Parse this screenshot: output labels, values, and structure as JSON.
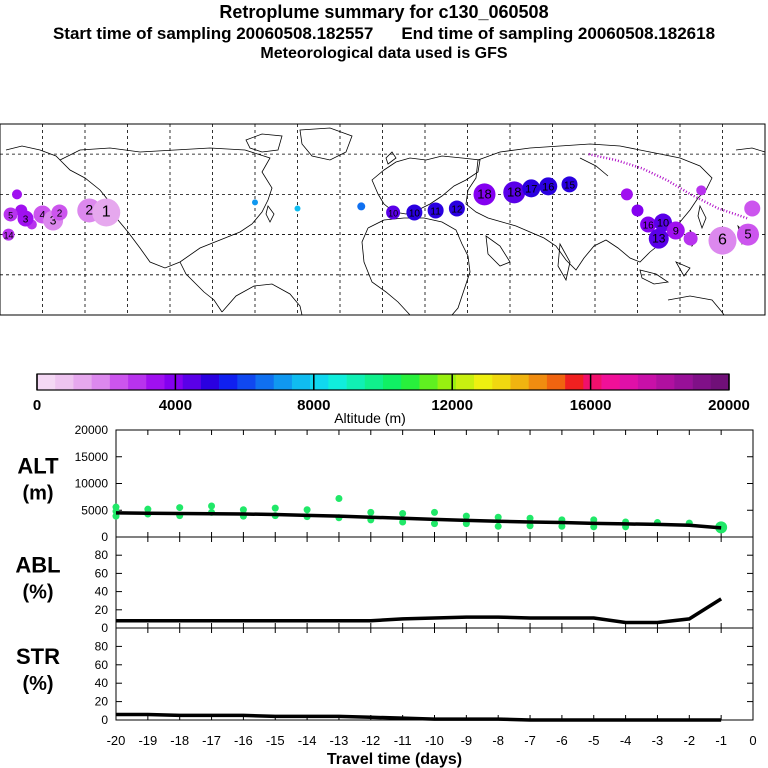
{
  "header": {
    "title": "Retroplume summary for c130_060508",
    "start_label": "Start time of sampling 20060508.182557",
    "end_label": "End time of sampling 20060508.182618",
    "met_label": "Meteorological data used is GFS"
  },
  "colorbar": {
    "label": "Altitude (m)",
    "ticks": [
      "0",
      "4000",
      "8000",
      "12000",
      "16000",
      "20000"
    ],
    "colors": [
      "#f4d8f4",
      "#eec4f0",
      "#e6a8ee",
      "#dc88ee",
      "#cc55ee",
      "#b833ee",
      "#a010f0",
      "#8400f0",
      "#5a00e8",
      "#2a00e0",
      "#1020f0",
      "#1048f0",
      "#1070f0",
      "#1098f0",
      "#10bcf0",
      "#10d8f0",
      "#10eedc",
      "#10f0b4",
      "#10f08c",
      "#10f064",
      "#28f03c",
      "#60f020",
      "#98f010",
      "#c8f010",
      "#eef010",
      "#f0d810",
      "#f0b410",
      "#f08c10",
      "#f06410",
      "#f02020",
      "#f0106c",
      "#f01098",
      "#e010a8",
      "#c810a8",
      "#b010a0",
      "#981098",
      "#801088",
      "#701078"
    ]
  },
  "icons": {
    "map": "world-map-icon"
  },
  "map_plumes": [
    {
      "lon": -170,
      "lat": 32,
      "alt": 3500,
      "size": 6,
      "label": "",
      "region": "pacific"
    },
    {
      "lon": -165,
      "lat": 25,
      "alt": 3000,
      "size": 5,
      "label": "",
      "region": "pacific"
    },
    {
      "lon": -175,
      "lat": 30,
      "alt": 2800,
      "size": 7,
      "label": "5",
      "region": "pacific"
    },
    {
      "lon": -168,
      "lat": 28,
      "alt": 3200,
      "size": 8,
      "label": "3",
      "region": "pacific"
    },
    {
      "lon": -160,
      "lat": 30,
      "alt": 2400,
      "size": 9,
      "label": "4",
      "region": "pacific"
    },
    {
      "lon": -155,
      "lat": 27,
      "alt": 2000,
      "size": 10,
      "label": "3",
      "region": "pacific"
    },
    {
      "lon": -152,
      "lat": 31,
      "alt": 2600,
      "size": 8,
      "label": "2",
      "region": "pacific"
    },
    {
      "lon": -138,
      "lat": 32,
      "alt": 1800,
      "size": 12,
      "label": "2",
      "region": "pacific"
    },
    {
      "lon": -130,
      "lat": 31,
      "alt": 1500,
      "size": 14,
      "label": "1",
      "region": "pacific"
    },
    {
      "lon": -176,
      "lat": 20,
      "alt": 3000,
      "size": 6,
      "label": "14",
      "region": "pacific"
    },
    {
      "lon": -172,
      "lat": 40,
      "alt": 3400,
      "size": 5,
      "label": "",
      "region": "pacific"
    },
    {
      "lon": -60,
      "lat": 36,
      "alt": 7000,
      "size": 3,
      "label": "",
      "region": "atlantic"
    },
    {
      "lon": -40,
      "lat": 33,
      "alt": 7500,
      "size": 3,
      "label": "",
      "region": "atlantic"
    },
    {
      "lon": -10,
      "lat": 34,
      "alt": 6500,
      "size": 4,
      "label": "",
      "region": "atlantic"
    },
    {
      "lon": 5,
      "lat": 31,
      "alt": 4500,
      "size": 7,
      "label": "10",
      "region": "europe"
    },
    {
      "lon": 15,
      "lat": 31,
      "alt": 5000,
      "size": 8,
      "label": "10",
      "region": "europe"
    },
    {
      "lon": 25,
      "lat": 32,
      "alt": 5200,
      "size": 8,
      "label": "11",
      "region": "europe"
    },
    {
      "lon": 35,
      "lat": 33,
      "alt": 5000,
      "size": 8,
      "label": "12",
      "region": "europe"
    },
    {
      "lon": 48,
      "lat": 40,
      "alt": 4200,
      "size": 11,
      "label": "18",
      "region": "asia"
    },
    {
      "lon": 62,
      "lat": 41,
      "alt": 4500,
      "size": 11,
      "label": "18",
      "region": "asia"
    },
    {
      "lon": 70,
      "lat": 43,
      "alt": 4800,
      "size": 9,
      "label": "17",
      "region": "asia"
    },
    {
      "lon": 78,
      "lat": 44,
      "alt": 5000,
      "size": 9,
      "label": "16",
      "region": "asia"
    },
    {
      "lon": 88,
      "lat": 45,
      "alt": 5200,
      "size": 8,
      "label": "15",
      "region": "asia"
    },
    {
      "lon": 115,
      "lat": 40,
      "alt": 3600,
      "size": 6,
      "label": "",
      "region": "asia"
    },
    {
      "lon": 120,
      "lat": 32,
      "alt": 4000,
      "size": 6,
      "label": "",
      "region": "asia"
    },
    {
      "lon": 125,
      "lat": 25,
      "alt": 3800,
      "size": 8,
      "label": "16",
      "region": "asia"
    },
    {
      "lon": 132,
      "lat": 26,
      "alt": 4300,
      "size": 9,
      "label": "10",
      "region": "asia"
    },
    {
      "lon": 138,
      "lat": 22,
      "alt": 3200,
      "size": 9,
      "label": "9",
      "region": "asia"
    },
    {
      "lon": 130,
      "lat": 18,
      "alt": 4700,
      "size": 10,
      "label": "13",
      "region": "asia"
    },
    {
      "lon": 145,
      "lat": 18,
      "alt": 3000,
      "size": 7,
      "label": "",
      "region": "asia"
    },
    {
      "lon": 160,
      "lat": 17,
      "alt": 1800,
      "size": 14,
      "label": "6",
      "region": "pacific"
    },
    {
      "lon": 172,
      "lat": 20,
      "alt": 2200,
      "size": 11,
      "label": "5",
      "region": "pacific"
    },
    {
      "lon": 174,
      "lat": 33,
      "alt": 2600,
      "size": 8,
      "label": "",
      "region": "pacific"
    },
    {
      "lon": 150,
      "lat": 42,
      "alt": 3000,
      "size": 5,
      "label": "",
      "region": "pacific"
    }
  ],
  "map_track": [
    {
      "lon": 97,
      "lat": 60
    },
    {
      "lon": 110,
      "lat": 57
    },
    {
      "lon": 122,
      "lat": 53
    },
    {
      "lon": 134,
      "lat": 47
    },
    {
      "lon": 145,
      "lat": 40
    },
    {
      "lon": 158,
      "lat": 33
    },
    {
      "lon": 172,
      "lat": 28
    }
  ],
  "chart_data": [
    {
      "type": "line",
      "title": "ALT (m)",
      "ylabel": "ALT (m)",
      "ylim": [
        0,
        20000
      ],
      "yticks": [
        0,
        5000,
        10000,
        15000,
        20000
      ],
      "x": [
        -20,
        -19,
        -18,
        -17,
        -16,
        -15,
        -14,
        -13,
        -12,
        -11,
        -10,
        -9,
        -8,
        -7,
        -6,
        -5,
        -4,
        -3,
        -2,
        -1
      ],
      "series": [
        {
          "name": "mean altitude",
          "values": [
            4500,
            4450,
            4400,
            4350,
            4300,
            4200,
            4050,
            3900,
            3700,
            3500,
            3300,
            3100,
            2950,
            2800,
            2700,
            2550,
            2450,
            2350,
            2200,
            1700
          ]
        }
      ],
      "scatter": {
        "name": "particle altitudes",
        "points": [
          [
            -20,
            5600
          ],
          [
            -20,
            4800
          ],
          [
            -20,
            3900
          ],
          [
            -19,
            5200
          ],
          [
            -19,
            4300
          ],
          [
            -18,
            5500
          ],
          [
            -18,
            4000
          ],
          [
            -17,
            5800
          ],
          [
            -17,
            4600
          ],
          [
            -16,
            5100
          ],
          [
            -16,
            3900
          ],
          [
            -15,
            5400
          ],
          [
            -15,
            4000
          ],
          [
            -14,
            5100
          ],
          [
            -14,
            3800
          ],
          [
            -13,
            7200
          ],
          [
            -13,
            3600
          ],
          [
            -12,
            4600
          ],
          [
            -12,
            3200
          ],
          [
            -11,
            4400
          ],
          [
            -11,
            2800
          ],
          [
            -10,
            4600
          ],
          [
            -10,
            2500
          ],
          [
            -9,
            3900
          ],
          [
            -9,
            2500
          ],
          [
            -8,
            3700
          ],
          [
            -8,
            2000
          ],
          [
            -7,
            3500
          ],
          [
            -7,
            2100
          ],
          [
            -6,
            3200
          ],
          [
            -6,
            2000
          ],
          [
            -5,
            3200
          ],
          [
            -5,
            1900
          ],
          [
            -4,
            2800
          ],
          [
            -4,
            1900
          ],
          [
            -3,
            2700
          ],
          [
            -2,
            2600
          ],
          [
            -1,
            1800
          ]
        ]
      }
    },
    {
      "type": "line",
      "title": "ABL (%)",
      "ylabel": "ABL (%)",
      "ylim": [
        0,
        100
      ],
      "yticks": [
        0,
        20,
        40,
        60,
        80
      ],
      "x": [
        -20,
        -19,
        -18,
        -17,
        -16,
        -15,
        -14,
        -13,
        -12,
        -11,
        -10,
        -9,
        -8,
        -7,
        -6,
        -5,
        -4,
        -3,
        -2,
        -1
      ],
      "series": [
        {
          "name": "fraction in ABL",
          "values": [
            8,
            8,
            8,
            8,
            8,
            8,
            8,
            8,
            8,
            10,
            11,
            12,
            12,
            11,
            11,
            11,
            6,
            6,
            10,
            32
          ]
        }
      ]
    },
    {
      "type": "line",
      "title": "STR (%)",
      "ylabel": "STR (%)",
      "ylim": [
        0,
        100
      ],
      "yticks": [
        0,
        20,
        40,
        60,
        80
      ],
      "xlabel": "Travel time (days)",
      "xticks": [
        -20,
        -19,
        -18,
        -17,
        -16,
        -15,
        -14,
        -13,
        -12,
        -11,
        -10,
        -9,
        -8,
        -7,
        -6,
        -5,
        -4,
        -3,
        -2,
        -1,
        0
      ],
      "x": [
        -20,
        -19,
        -18,
        -17,
        -16,
        -15,
        -14,
        -13,
        -12,
        -11,
        -10,
        -9,
        -8,
        -7,
        -6,
        -5,
        -4,
        -3,
        -2,
        -1
      ],
      "series": [
        {
          "name": "fraction in stratosphere",
          "values": [
            6,
            6,
            5,
            5,
            5,
            4,
            4,
            4,
            3,
            2,
            1,
            1,
            1,
            0,
            0,
            0,
            0,
            0,
            0,
            0
          ]
        }
      ]
    }
  ]
}
